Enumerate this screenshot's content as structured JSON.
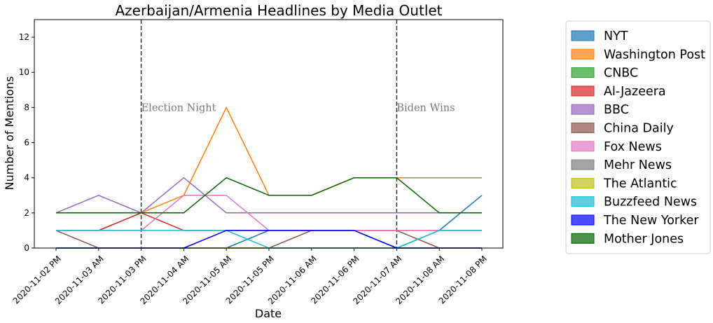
{
  "chart_data": {
    "type": "line",
    "title": "Azerbaijan/Armenia Headlines by Media Outlet",
    "xlabel": "Date",
    "ylabel": "Number of Mentions",
    "ylim": [
      0,
      13
    ],
    "yticks": [
      0,
      2,
      4,
      6,
      8,
      10,
      12
    ],
    "categories": [
      "2020-11-02 PM",
      "2020-11-03 AM",
      "2020-11-03 PM",
      "2020-11-04 AM",
      "2020-11-05 AM",
      "2020-11-05 PM",
      "2020-11-06 AM",
      "2020-11-06 PM",
      "2020-11-07 AM",
      "2020-11-08 AM",
      "2020-11-08 PM"
    ],
    "grid": false,
    "legend_position": "outside-right",
    "annotations": [
      {
        "text": "Election Night",
        "x_index": 2,
        "y": 8
      },
      {
        "text": "Biden Wins",
        "x_index": 8,
        "y": 8
      }
    ],
    "series": [
      {
        "name": "NYT",
        "color": "#1f77b4",
        "values": [
          0,
          0,
          0,
          0,
          0,
          1,
          1,
          1,
          0,
          1,
          3
        ]
      },
      {
        "name": "Washington Post",
        "color": "#ff7f0e",
        "values": [
          1,
          1,
          2,
          3,
          8,
          3,
          3,
          4,
          4,
          4,
          4
        ]
      },
      {
        "name": "CNBC",
        "color": "#2ca02c",
        "values": [
          0,
          0,
          0,
          0,
          0,
          0,
          0,
          0,
          0,
          0,
          0
        ]
      },
      {
        "name": "Al-Jazeera",
        "color": "#d62728",
        "values": [
          1,
          1,
          2,
          1,
          1,
          1,
          1,
          1,
          1,
          1,
          1
        ]
      },
      {
        "name": "BBC",
        "color": "#9467bd",
        "values": [
          2,
          3,
          2,
          4,
          2,
          2,
          2,
          2,
          2,
          2,
          2
        ]
      },
      {
        "name": "China Daily",
        "color": "#8c564b",
        "values": [
          1,
          0,
          0,
          0,
          0,
          0,
          1,
          1,
          1,
          0,
          0
        ]
      },
      {
        "name": "Fox News",
        "color": "#e377c2",
        "values": [
          1,
          1,
          1,
          3,
          3,
          1,
          1,
          1,
          1,
          1,
          1
        ]
      },
      {
        "name": "Mehr News",
        "color": "#7f7f7f",
        "values": [
          0,
          0,
          0,
          0,
          0,
          0,
          0,
          0,
          0,
          0,
          0
        ]
      },
      {
        "name": "The Atlantic",
        "color": "#bcbd22",
        "values": [
          0,
          0,
          0,
          0,
          0,
          0,
          0,
          0,
          0,
          0,
          0
        ]
      },
      {
        "name": "Buzzfeed News",
        "color": "#17becf",
        "values": [
          1,
          1,
          1,
          1,
          1,
          0,
          0,
          0,
          0,
          1,
          1
        ]
      },
      {
        "name": "The New Yorker",
        "color": "#0000ff",
        "values": [
          0,
          0,
          0,
          0,
          1,
          1,
          1,
          1,
          0,
          0,
          0
        ]
      },
      {
        "name": "Mother Jones",
        "color": "#006400",
        "values": [
          2,
          2,
          2,
          2,
          4,
          3,
          3,
          4,
          4,
          2,
          2
        ]
      }
    ]
  }
}
